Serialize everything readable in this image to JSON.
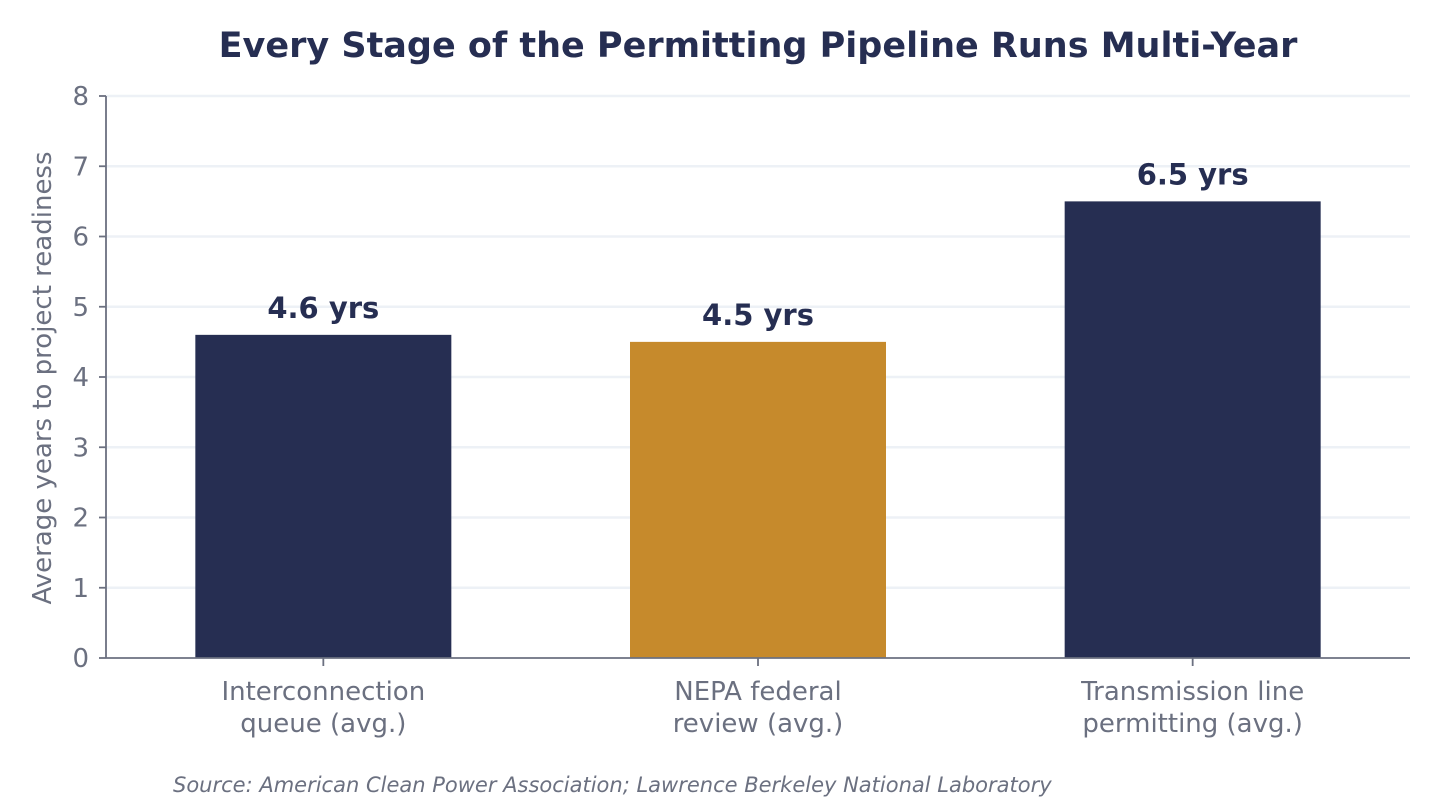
{
  "chart_data": {
    "type": "bar",
    "title": "Every Stage of the Permitting Pipeline Runs Multi-Year",
    "ylabel": "Average years to project readiness",
    "xlabel": "",
    "ylim": [
      0,
      8
    ],
    "yticks": [
      "0",
      "1",
      "2",
      "3",
      "4",
      "5",
      "6",
      "7",
      "8"
    ],
    "grid": "horizontal",
    "categories": [
      [
        "Interconnection",
        "queue (avg.)"
      ],
      [
        "NEPA federal",
        "review (avg.)"
      ],
      [
        "Transmission line",
        "permitting (avg.)"
      ]
    ],
    "values": [
      4.6,
      4.5,
      6.5
    ],
    "data_labels": [
      "4.6 yrs",
      "4.5 yrs",
      "6.5 yrs"
    ],
    "bar_colors": [
      "#262e52",
      "#c68a2c",
      "#262e52"
    ],
    "source": "Source: American Clean Power Association; Lawrence Berkeley National Laboratory"
  },
  "colors": {
    "title": "#262e52",
    "axis": "#6b7080",
    "grid": "#edf1f6",
    "primary_bar": "#262e52",
    "highlight_bar": "#c68a2c"
  }
}
